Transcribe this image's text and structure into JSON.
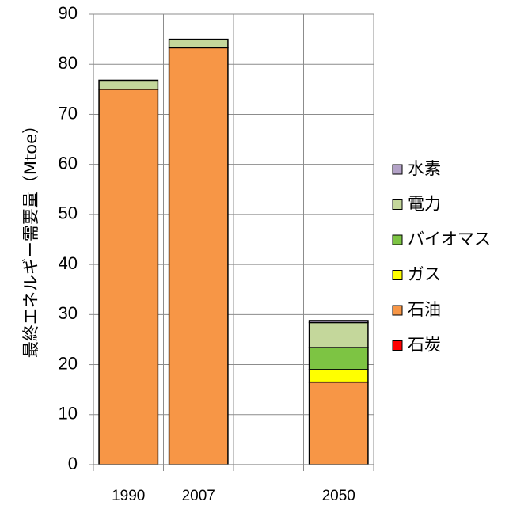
{
  "chart_data": {
    "type": "bar",
    "stacked": true,
    "title": "",
    "xlabel": "",
    "ylabel": "最終エネルギー需要量（Mtoe）",
    "ylim": [
      0,
      90
    ],
    "yticks": [
      0,
      10,
      20,
      30,
      40,
      50,
      60,
      70,
      80,
      90
    ],
    "grid": true,
    "legend_position": "right",
    "categories": [
      "1990",
      "2007",
      "",
      "2050"
    ],
    "series": [
      {
        "name": "石炭",
        "color": "#ff0000",
        "values": [
          0,
          0,
          0,
          0
        ]
      },
      {
        "name": "石油",
        "color": "#f79646",
        "values": [
          75,
          83.3,
          0,
          16.5
        ]
      },
      {
        "name": "ガス",
        "color": "#ffff00",
        "values": [
          0,
          0,
          0,
          2.5
        ]
      },
      {
        "name": "バイオマス",
        "color": "#7dc443",
        "values": [
          0,
          0,
          0,
          4.4
        ]
      },
      {
        "name": "電力",
        "color": "#c4d79b",
        "values": [
          1.8,
          1.7,
          0,
          5.0
        ]
      },
      {
        "name": "水素",
        "color": "#b3a2c7",
        "values": [
          0,
          0,
          0,
          0.4
        ]
      }
    ]
  }
}
